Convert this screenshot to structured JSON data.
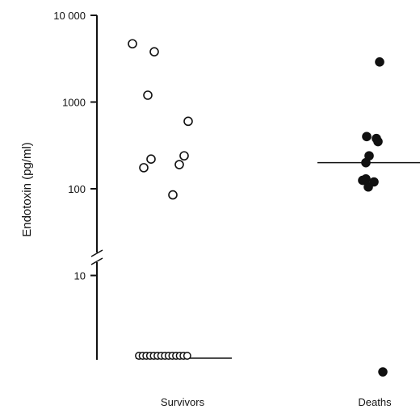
{
  "chart_data": {
    "type": "scatter",
    "ylabel": "Endotoxin (pg/ml)",
    "yscale": "log",
    "y_ticks": [
      {
        "value": 10000,
        "label": "10 000"
      },
      {
        "value": 1000,
        "label": "1000"
      },
      {
        "value": 100,
        "label": "100"
      },
      {
        "value": 10,
        "label": "10"
      }
    ],
    "axis_break": "between 10 and 100",
    "categories": [
      "Survivors",
      "Deaths"
    ],
    "groups": [
      {
        "category": "Survivors",
        "marker": "open-circle",
        "median": "below detection",
        "values": [
          4700,
          3800,
          1200,
          600,
          240,
          220,
          190,
          175,
          85
        ],
        "below_detection_count": 14
      },
      {
        "category": "Deaths",
        "marker": "filled-circle",
        "median": 200,
        "values": [
          2900,
          400,
          380,
          350,
          240,
          200,
          130,
          125,
          120,
          105
        ],
        "below_detection_count": 1
      }
    ]
  }
}
